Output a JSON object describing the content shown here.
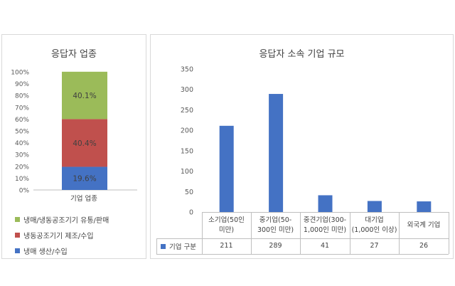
{
  "chart_data": [
    {
      "type": "bar",
      "stacked": true,
      "title": "응답자 업종",
      "categories": [
        "기업 업종"
      ],
      "ylim": [
        0,
        100
      ],
      "y_ticks": [
        "0%",
        "10%",
        "20%",
        "30%",
        "40%",
        "50%",
        "60%",
        "70%",
        "80%",
        "90%",
        "100%"
      ],
      "series": [
        {
          "name": "냉매 생산/수입",
          "values": [
            19.6
          ],
          "label": "19.6%",
          "color": "#4472c4"
        },
        {
          "name": "냉동공조기기 제조/수입",
          "values": [
            40.4
          ],
          "label": "40.4%",
          "color": "#c0504d"
        },
        {
          "name": "냉매/냉동공조기기 유통/판매",
          "values": [
            40.1
          ],
          "label": "40.1%",
          "color": "#9bbb59"
        }
      ],
      "legend_order": [
        {
          "name": "냉매/냉동공조기기 유통/판매",
          "color": "#9bbb59"
        },
        {
          "name": "냉동공조기기 제조/수입",
          "color": "#c0504d"
        },
        {
          "name": "냉매 생산/수입",
          "color": "#4472c4"
        }
      ],
      "legend": "bottom",
      "grid": false
    },
    {
      "type": "bar",
      "title": "응답자 소속 기업 규모",
      "categories": [
        [
          "소기업(50인",
          "미만)"
        ],
        [
          "중기업(50-",
          "300인 미만)"
        ],
        [
          "중견기업(300-",
          "1,000인 미만)"
        ],
        [
          "대기업",
          "(1,000인 이상)"
        ],
        [
          "외국계 기업"
        ]
      ],
      "series": [
        {
          "name": "기업 구분",
          "values": [
            211,
            289,
            41,
            27,
            26
          ],
          "color": "#4472c4"
        }
      ],
      "table_values": [
        "211",
        "289",
        "41",
        "27",
        "26"
      ],
      "ylim": [
        0,
        350
      ],
      "y_ticks": [
        "0",
        "50",
        "100",
        "150",
        "200",
        "250",
        "300",
        "350"
      ],
      "legend": "data-table",
      "grid": false
    }
  ]
}
